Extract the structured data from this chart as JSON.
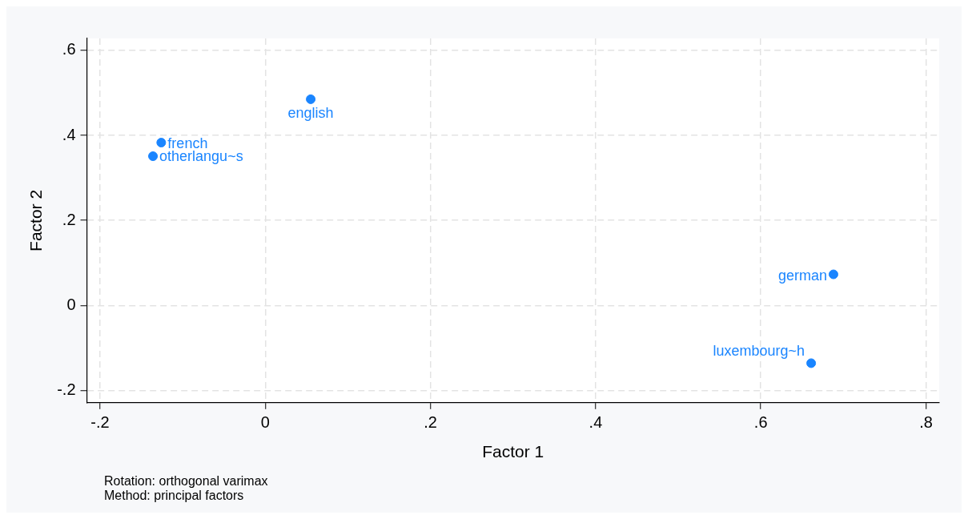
{
  "chart_data": {
    "type": "scatter",
    "xlabel": "Factor 1",
    "ylabel": "Factor 2",
    "x": [
      0.055,
      -0.126,
      -0.136,
      0.688,
      0.661
    ],
    "series": [
      {
        "color": "#1a85ff",
        "values": [
          0.485,
          0.383,
          0.351,
          0.073,
          -0.136
        ]
      }
    ],
    "xlim": [
      -0.216,
      0.816
    ],
    "ylim": [
      -0.229,
      0.628
    ],
    "xticks": [
      {
        "value": -0.2,
        "label": "-.2"
      },
      0,
      {
        "value": 0.2,
        "label": ".2"
      },
      {
        "value": 0.4,
        "label": ".4"
      },
      {
        "value": 0.6,
        "label": ".6"
      },
      {
        "value": 0.8,
        "label": ".8"
      }
    ],
    "yticks": [
      {
        "value": -0.2,
        "label": "-.2"
      },
      0,
      {
        "value": 0.2,
        "label": ".2"
      },
      {
        "value": 0.4,
        "label": ".4"
      },
      {
        "value": 0.6,
        "label": ".6"
      }
    ],
    "grid": true,
    "marker": "circle",
    "legend": false,
    "annotations": [
      {
        "text": "english",
        "x": 0.055,
        "y": 0.485
      },
      {
        "text": "french",
        "x": -0.126,
        "y": 0.383
      },
      {
        "text": "otherlangu~s",
        "x": -0.136,
        "y": 0.351
      },
      {
        "text": "german",
        "x": 0.688,
        "y": 0.073
      },
      {
        "text": "luxembourg~h",
        "x": 0.661,
        "y": -0.136
      },
      "Rotation: orthogonal varimax",
      "Method: principal factors"
    ]
  }
}
